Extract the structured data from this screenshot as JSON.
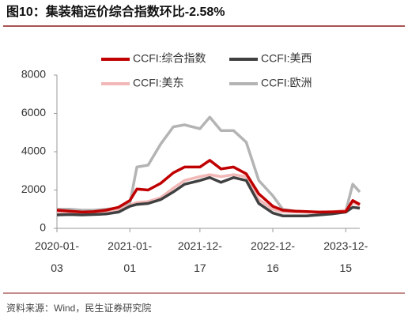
{
  "chart_data": {
    "type": "line",
    "title": "图10：集装箱运价综合指数环比-2.58%",
    "source": "资料来源：Wind，民生证券研究院",
    "x": [
      "2020-01-03",
      "2020-03-06",
      "2020-05-08",
      "2020-07-03",
      "2020-09-04",
      "2020-11-06",
      "2021-01-01",
      "2021-02-05",
      "2021-04-02",
      "2021-06-04",
      "2021-08-06",
      "2021-10-01",
      "2021-12-17",
      "2022-02-04",
      "2022-04-01",
      "2022-06-03",
      "2022-08-05",
      "2022-10-07",
      "2022-12-16",
      "2023-02-03",
      "2023-04-07",
      "2023-06-02",
      "2023-08-04",
      "2023-10-06",
      "2023-12-15",
      "2024-01-19",
      "2024-02-23"
    ],
    "series": [
      {
        "name": "CCFI:综合指数",
        "color": "#c00000",
        "values": [
          950,
          900,
          850,
          870,
          950,
          1100,
          1450,
          2050,
          2000,
          2350,
          2900,
          3200,
          3200,
          3550,
          3100,
          3200,
          2850,
          1800,
          1150,
          950,
          900,
          880,
          850,
          860,
          880,
          1450,
          1250
        ]
      },
      {
        "name": "CCFI:美西",
        "color": "#404040",
        "values": [
          700,
          720,
          700,
          720,
          750,
          850,
          1150,
          1250,
          1300,
          1500,
          1900,
          2300,
          2500,
          2650,
          2400,
          2650,
          2500,
          1300,
          800,
          650,
          650,
          650,
          700,
          750,
          850,
          1100,
          1050
        ]
      },
      {
        "name": "CCFI:美东",
        "color": "#f2b8b8",
        "values": [
          800,
          800,
          780,
          800,
          850,
          950,
          1200,
          1350,
          1400,
          1600,
          2100,
          2500,
          2700,
          2800,
          2700,
          2800,
          2700,
          1500,
          1000,
          850,
          850,
          850,
          830,
          850,
          950,
          1350,
          1200
        ]
      },
      {
        "name": "CCFI:欧洲",
        "color": "#b4b4b4",
        "values": [
          1000,
          1000,
          950,
          950,
          1000,
          1050,
          1300,
          3200,
          3300,
          4400,
          5300,
          5400,
          5200,
          5800,
          5100,
          5100,
          4500,
          2500,
          1700,
          1000,
          900,
          850,
          850,
          850,
          900,
          2300,
          1900
        ]
      }
    ],
    "xlim": [
      "2020-01-03",
      "2024-02-23"
    ],
    "xticks": [
      "2020-01-03",
      "2021-01-01",
      "2021-12-17",
      "2022-12-16",
      "2023-12-15"
    ],
    "ylim": [
      0,
      8000
    ],
    "yticks": [
      0,
      2000,
      4000,
      6000,
      8000
    ],
    "grid": false
  }
}
